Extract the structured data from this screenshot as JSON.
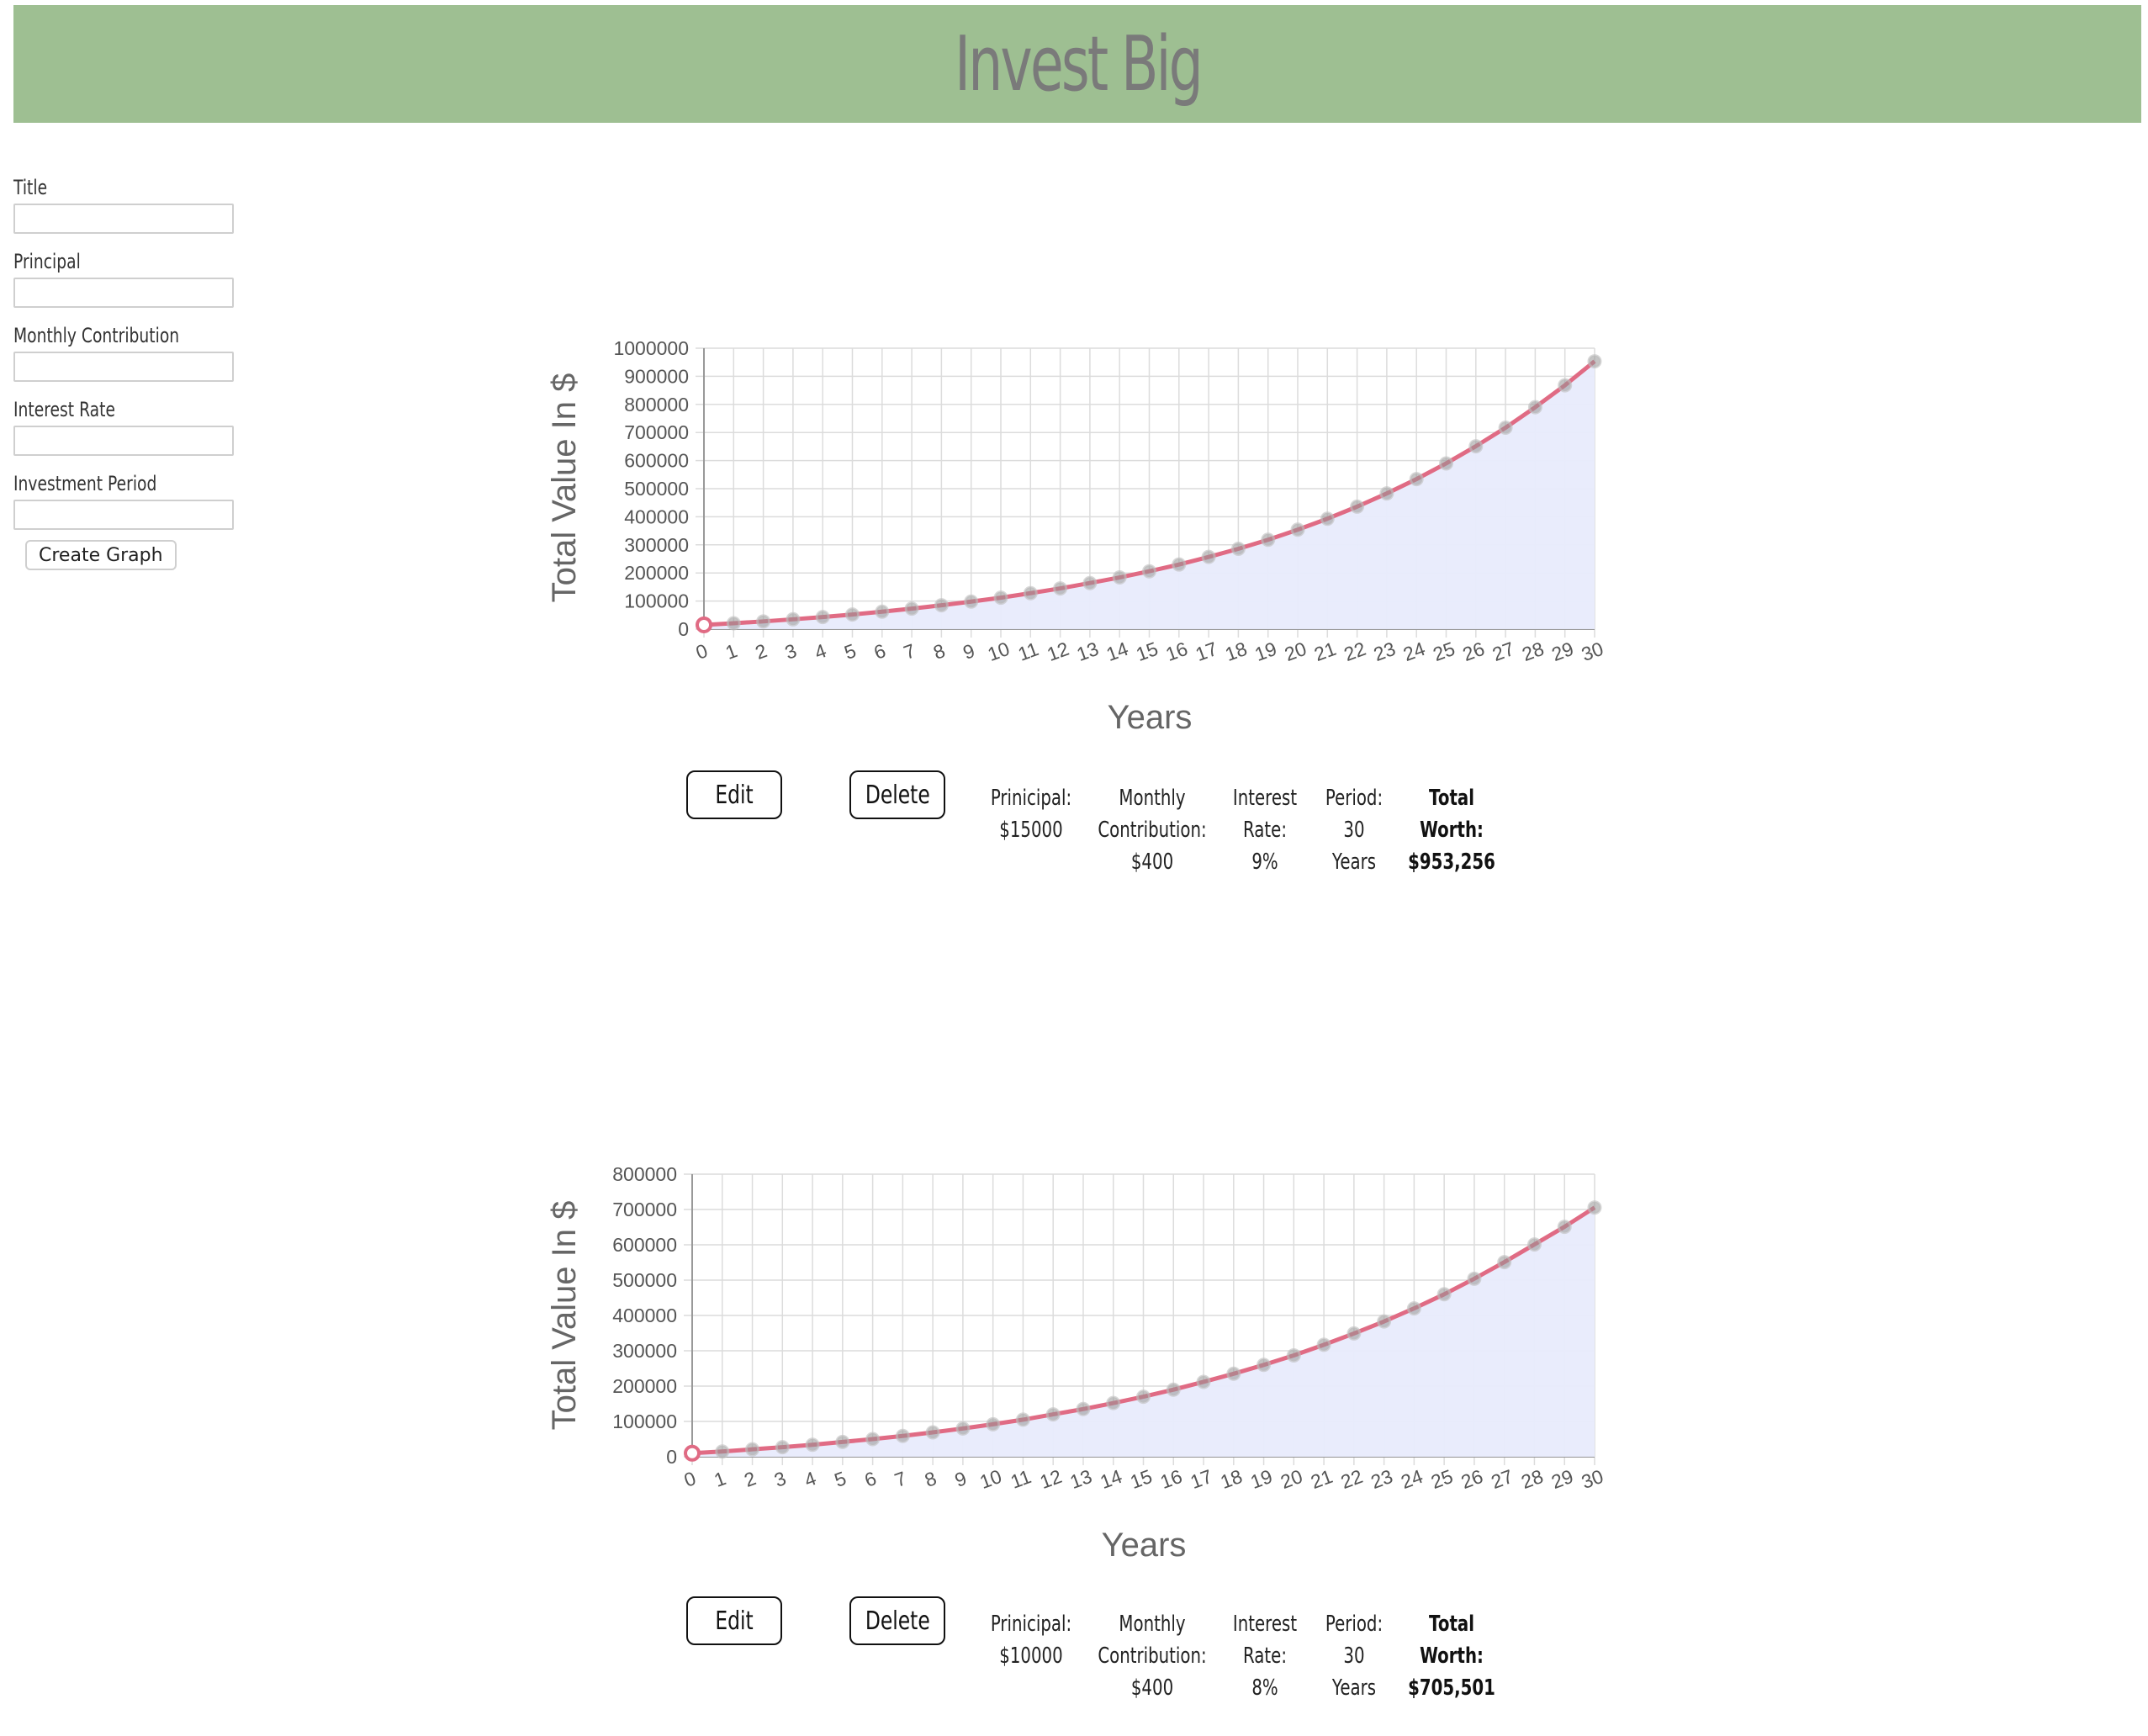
{
  "header": {
    "title": "Invest Big"
  },
  "form": {
    "fields": [
      {
        "label": "Title",
        "value": ""
      },
      {
        "label": "Principal",
        "value": ""
      },
      {
        "label": "Monthly Contribution",
        "value": ""
      },
      {
        "label": "Interest Rate",
        "value": ""
      },
      {
        "label": "Investment Period",
        "value": ""
      }
    ],
    "submit_label": "Create Graph"
  },
  "colors": {
    "header_bg": "#9ebf92",
    "line": "#e06b84",
    "fill": "#e8ebfc"
  },
  "graphs": [
    {
      "controls": {
        "edit_label": "Edit",
        "delete_label": "Delete"
      },
      "info": [
        {
          "lines": [
            "Prinicipal:",
            "$15000"
          ],
          "bold": false
        },
        {
          "lines": [
            "Monthly",
            "Contribution:",
            "$400"
          ],
          "bold": false
        },
        {
          "lines": [
            "Interest",
            "Rate:",
            "9%"
          ],
          "bold": false
        },
        {
          "lines": [
            "Period:",
            "30",
            "Years"
          ],
          "bold": false
        },
        {
          "lines": [
            "Total",
            "Worth:",
            "$953,256"
          ],
          "bold": true
        }
      ],
      "chart_data": {
        "type": "area",
        "xlabel": "Years",
        "ylabel": "Total Value In $",
        "ylim": [
          0,
          1000000
        ],
        "yticks": [
          0,
          100000,
          200000,
          300000,
          400000,
          500000,
          600000,
          700000,
          800000,
          900000,
          1000000
        ],
        "x": [
          0,
          1,
          2,
          3,
          4,
          5,
          6,
          7,
          8,
          9,
          10,
          11,
          12,
          13,
          14,
          15,
          16,
          17,
          18,
          19,
          20,
          21,
          22,
          23,
          24,
          25,
          26,
          27,
          28,
          29,
          30
        ],
        "values": [
          15000,
          21000,
          27500,
          35000,
          43000,
          52000,
          62000,
          73000,
          85000,
          98000,
          112000,
          128000,
          145000,
          164000,
          184000,
          206000,
          230000,
          257000,
          286000,
          318000,
          354000,
          393000,
          436000,
          483000,
          534000,
          590000,
          651000,
          717000,
          790000,
          868000,
          953256
        ],
        "grid": true
      }
    },
    {
      "controls": {
        "edit_label": "Edit",
        "delete_label": "Delete"
      },
      "info": [
        {
          "lines": [
            "Prinicipal:",
            "$10000"
          ],
          "bold": false
        },
        {
          "lines": [
            "Monthly",
            "Contribution:",
            "$400"
          ],
          "bold": false
        },
        {
          "lines": [
            "Interest",
            "Rate:",
            "8%"
          ],
          "bold": false
        },
        {
          "lines": [
            "Period:",
            "30",
            "Years"
          ],
          "bold": false
        },
        {
          "lines": [
            "Total",
            "Worth:",
            "$705,501"
          ],
          "bold": true
        }
      ],
      "chart_data": {
        "type": "area",
        "xlabel": "Years",
        "ylabel": "Total Value In $",
        "ylim": [
          0,
          800000
        ],
        "yticks": [
          0,
          100000,
          200000,
          300000,
          400000,
          500000,
          600000,
          700000,
          800000
        ],
        "x": [
          0,
          1,
          2,
          3,
          4,
          5,
          6,
          7,
          8,
          9,
          10,
          11,
          12,
          13,
          14,
          15,
          16,
          17,
          18,
          19,
          20,
          21,
          22,
          23,
          24,
          25,
          26,
          27,
          28,
          29,
          30
        ],
        "values": [
          10000,
          15000,
          21000,
          27000,
          34000,
          42000,
          50000,
          59000,
          69000,
          80000,
          92000,
          105000,
          120000,
          135000,
          152000,
          170000,
          190000,
          212000,
          235000,
          260000,
          287000,
          317000,
          349000,
          383000,
          420000,
          460000,
          504000,
          551000,
          601000,
          651000,
          705501
        ],
        "grid": true
      }
    }
  ]
}
